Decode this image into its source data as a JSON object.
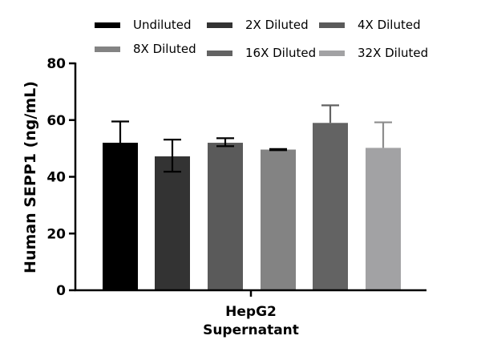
{
  "chart_data": {
    "type": "bar",
    "ylabel": "Human SEPP1 (ng/mL)",
    "xlabel": "",
    "ylim": [
      0,
      80
    ],
    "yticks": [
      "0",
      "20",
      "40",
      "60",
      "80"
    ],
    "category_label_lines": [
      "HepG2",
      "Supernatant"
    ],
    "legend_position": "top",
    "series": [
      {
        "name": "Undiluted",
        "value": 52,
        "error_low": 6.8,
        "error_high": 7.5,
        "color": "#000000",
        "error_color": "#000000"
      },
      {
        "name": "2X Diluted",
        "value": 47.2,
        "error_low": 5.4,
        "error_high": 5.9,
        "color": "#333333",
        "error_color": "#000000"
      },
      {
        "name": "4X Diluted",
        "value": 52,
        "error_low": 1.2,
        "error_high": 1.6,
        "color": "#5a5a5a",
        "error_color": "#000000"
      },
      {
        "name": "8X Diluted",
        "value": 49.6,
        "error_low": 0.2,
        "error_high": 0.2,
        "color": "#838383",
        "error_color": "#000000"
      },
      {
        "name": "16X Diluted",
        "value": 59,
        "error_low": 0,
        "error_high": 6.2,
        "color": "#636363",
        "error_color": "#636363"
      },
      {
        "name": "32X Diluted",
        "value": 50.2,
        "error_low": 0,
        "error_high": 9,
        "color": "#a2a2a4",
        "error_color": "#8d8d8d"
      }
    ]
  }
}
